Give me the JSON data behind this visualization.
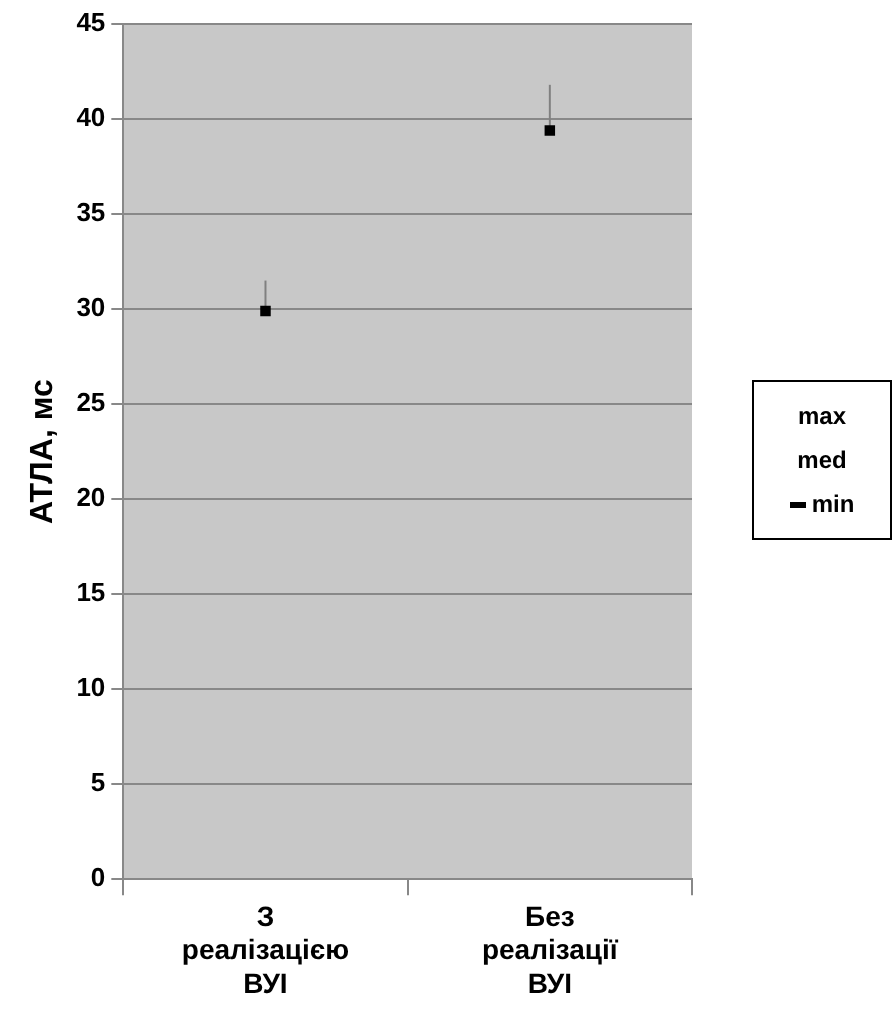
{
  "chart_data": {
    "type": "scatter",
    "ylabel": "АТЛА, мс",
    "categories": [
      "З реалізацією ВУІ",
      "Без реалізації ВУІ"
    ],
    "series": [
      {
        "name": "min",
        "color": "#000000",
        "marker": "square",
        "values": [
          29.9,
          39.4
        ],
        "errors": [
          [
            29.9,
            31.5
          ],
          [
            39.4,
            41.8
          ]
        ]
      }
    ],
    "annotations": [
      "max",
      "med"
    ],
    "ylim": [
      0,
      45
    ],
    "yticks": [
      0,
      5,
      10,
      15,
      20,
      25,
      30,
      35,
      40,
      45
    ],
    "grid": "y",
    "legend": "right"
  }
}
